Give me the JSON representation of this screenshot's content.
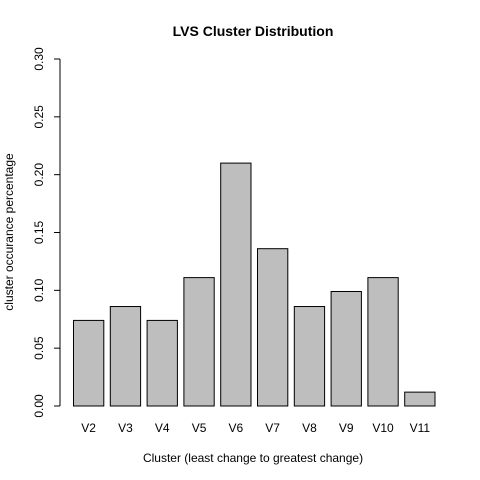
{
  "chart_data": {
    "type": "bar",
    "title": "LVS Cluster Distribution",
    "xlabel": "Cluster (least change to greatest change)",
    "ylabel": "cluster occurance percentage",
    "categories": [
      "V2",
      "V3",
      "V4",
      "V5",
      "V6",
      "V7",
      "V8",
      "V9",
      "V10",
      "V11"
    ],
    "values": [
      0.074,
      0.086,
      0.074,
      0.111,
      0.21,
      0.136,
      0.086,
      0.099,
      0.111,
      0.012
    ],
    "ylim": [
      0,
      0.3
    ],
    "yticks": [
      0,
      0.05,
      0.1,
      0.15,
      0.2,
      0.25,
      0.3
    ],
    "ytick_labels": [
      "0.00",
      "0.05",
      "0.10",
      "0.15",
      "0.20",
      "0.25",
      "0.30"
    ],
    "grid": false,
    "bar_fill": "#bebebe",
    "bar_stroke": "#000000"
  }
}
